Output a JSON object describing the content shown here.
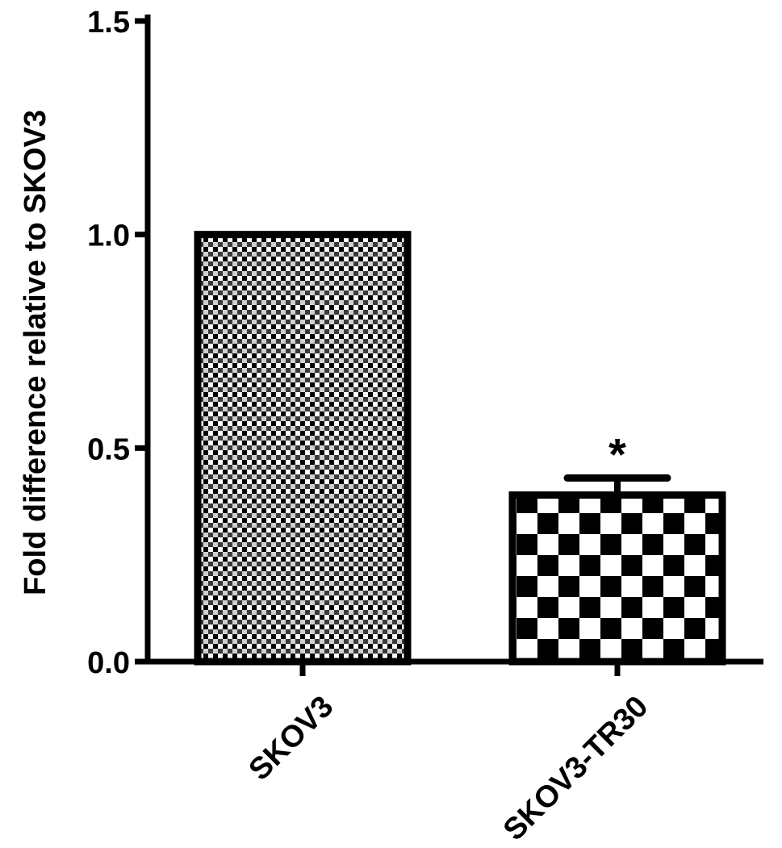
{
  "chart_data": {
    "type": "bar",
    "categories": [
      "SKOV3",
      "SKOV3-TR30"
    ],
    "values": [
      1.0,
      0.39
    ],
    "error_upper": [
      null,
      0.43
    ],
    "annotations": [
      {
        "category": "SKOV3-TR30",
        "text": "*"
      }
    ],
    "title": "",
    "xlabel": "",
    "ylabel": "Fold difference relative to SKOV3",
    "ylim": [
      0,
      1.5
    ],
    "yticks": [
      0.0,
      0.5,
      1.0,
      1.5
    ],
    "ytick_labels": [
      "0.0",
      "0.5",
      "1.0",
      "1.5"
    ],
    "bar_patterns": [
      "fine-dot",
      "checkerboard"
    ],
    "grid": false,
    "legend": "none",
    "colors": {
      "ink": "#000000",
      "background": "#ffffff"
    }
  }
}
